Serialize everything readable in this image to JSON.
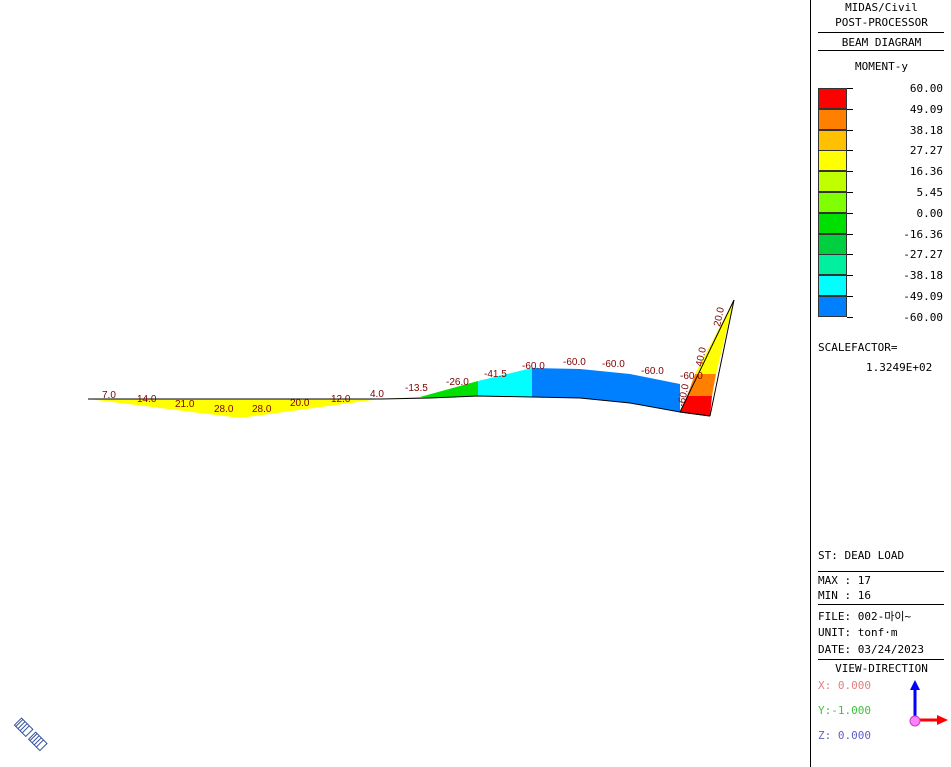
{
  "header": {
    "line1": "MIDAS/Civil",
    "line2": "POST-PROCESSOR",
    "line3": "BEAM DIAGRAM",
    "component": "MOMENT-y"
  },
  "legend": {
    "values": [
      "60.00",
      "49.09",
      "38.18",
      "27.27",
      "16.36",
      "5.45",
      "0.00",
      "-16.36",
      "-27.27",
      "-38.18",
      "-49.09",
      "-60.00"
    ],
    "colors": [
      "#ff0000",
      "#ff8000",
      "#ffc000",
      "#ffff00",
      "#c0ff00",
      "#80ff00",
      "#00e000",
      "#00d040",
      "#00f0a0",
      "#00ffff",
      "#0080ff"
    ]
  },
  "scale": {
    "label": "SCALEFACTOR=",
    "value": "1.3249E+02"
  },
  "info": {
    "stage": "ST: DEAD LOAD",
    "max": "MAX : 17",
    "min": "MIN : 16",
    "file": "FILE: 002-마이~",
    "unit": "UNIT: tonf·m",
    "date": "DATE: 03/24/2023"
  },
  "view": {
    "title": "VIEW-DIRECTION",
    "x": "X: 0.000",
    "y": "Y:-1.000",
    "z": "Z: 0.000"
  },
  "diagram_labels": [
    "7.0",
    "14.0",
    "21.0",
    "28.0",
    "28.0",
    "20.0",
    "12.0",
    "4.0",
    "-13.5",
    "-26.0",
    "-41.5",
    "-60.0",
    "-60.0",
    "-60.0",
    "-60.0",
    "-60.0",
    "-60.0",
    "40.0",
    "20.0"
  ],
  "colors": {
    "label": "#800000",
    "x_axis": "#e08080",
    "y_axis": "#40c040",
    "z_axis": "#6060c0"
  }
}
